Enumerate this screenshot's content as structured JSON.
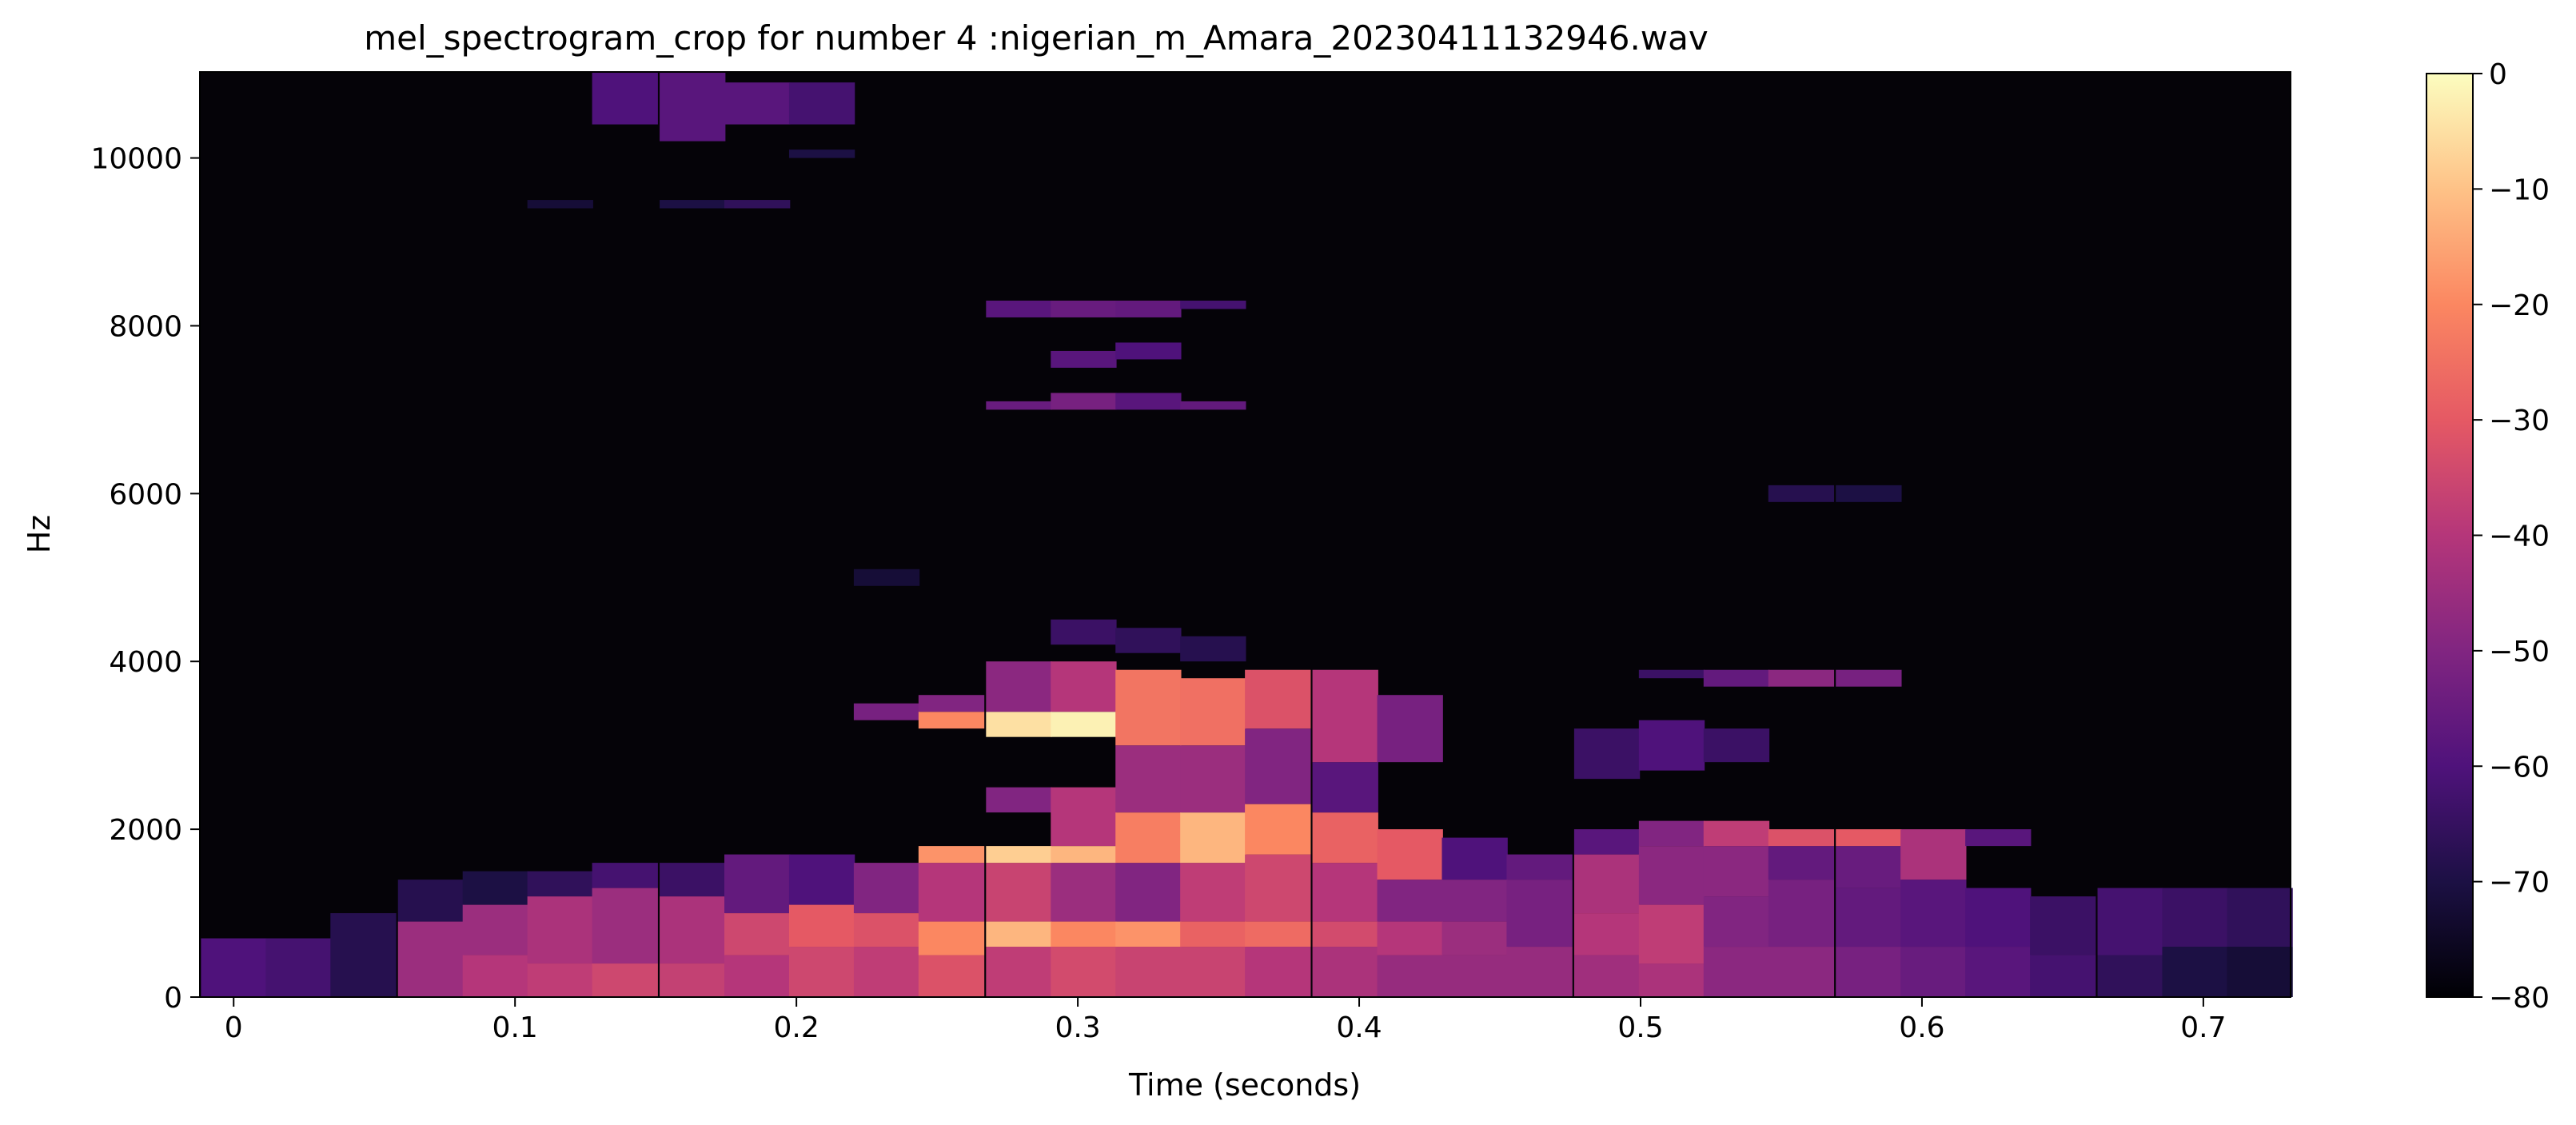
{
  "chart_data": {
    "type": "heatmap",
    "title": "mel_spectrogram_crop for number 4 :nigerian_m_Amara_20230411132946.wav",
    "xlabel": "Time (seconds)",
    "ylabel": "Hz",
    "xlim": [
      -0.012,
      0.731
    ],
    "ylim": [
      0,
      11025
    ],
    "x_ticks": [
      0,
      0.1,
      0.2,
      0.3,
      0.4,
      0.5,
      0.6,
      0.7
    ],
    "x_tick_labels": [
      "0",
      "0.1",
      "0.2",
      "0.3",
      "0.4",
      "0.5",
      "0.6",
      "0.7"
    ],
    "y_ticks": [
      0,
      2000,
      4000,
      6000,
      8000,
      10000
    ],
    "y_tick_labels": [
      "0",
      "2000",
      "4000",
      "6000",
      "8000",
      "10000"
    ],
    "colorbar": {
      "range": [
        -80,
        0
      ],
      "ticks": [
        0,
        -10,
        -20,
        -30,
        -40,
        -50,
        -60,
        -70,
        -80
      ],
      "tick_labels": [
        "0",
        "−10",
        "−20",
        "−30",
        "−40",
        "−50",
        "−60",
        "−70",
        "−80"
      ],
      "colormap": "magma"
    },
    "frames": [
      {
        "t": 0.0,
        "regions": [
          [
            0,
            700,
            -60
          ]
        ]
      },
      {
        "t": 0.023,
        "regions": [
          [
            0,
            700,
            -62
          ]
        ]
      },
      {
        "t": 0.046,
        "regions": [
          [
            0,
            1000,
            -68
          ]
        ]
      },
      {
        "t": 0.07,
        "regions": [
          [
            0,
            900,
            -45
          ],
          [
            900,
            1400,
            -68
          ]
        ]
      },
      {
        "t": 0.093,
        "regions": [
          [
            0,
            500,
            -40
          ],
          [
            500,
            1100,
            -45
          ],
          [
            1100,
            1500,
            -70
          ]
        ]
      },
      {
        "t": 0.116,
        "regions": [
          [
            0,
            400,
            -38
          ],
          [
            400,
            1200,
            -42
          ],
          [
            1200,
            1500,
            -66
          ],
          [
            9400,
            9500,
            -72
          ]
        ]
      },
      {
        "t": 0.139,
        "regions": [
          [
            0,
            400,
            -35
          ],
          [
            400,
            1300,
            -45
          ],
          [
            1300,
            1600,
            -62
          ],
          [
            10400,
            11025,
            -60
          ]
        ]
      },
      {
        "t": 0.163,
        "regions": [
          [
            0,
            400,
            -37
          ],
          [
            400,
            1200,
            -42
          ],
          [
            1200,
            1600,
            -64
          ],
          [
            10200,
            11025,
            -58
          ],
          [
            9400,
            9500,
            -70
          ]
        ]
      },
      {
        "t": 0.186,
        "regions": [
          [
            0,
            500,
            -40
          ],
          [
            500,
            1000,
            -35
          ],
          [
            1000,
            1700,
            -56
          ],
          [
            10400,
            10900,
            -58
          ],
          [
            9400,
            9500,
            -66
          ]
        ]
      },
      {
        "t": 0.209,
        "regions": [
          [
            0,
            600,
            -35
          ],
          [
            600,
            1100,
            -30
          ],
          [
            1100,
            1700,
            -60
          ],
          [
            10400,
            10900,
            -62
          ],
          [
            10000,
            10100,
            -70
          ]
        ]
      },
      {
        "t": 0.232,
        "regions": [
          [
            0,
            600,
            -38
          ],
          [
            600,
            1000,
            -32
          ],
          [
            1000,
            1600,
            -50
          ],
          [
            3300,
            3500,
            -52
          ],
          [
            4900,
            5100,
            -72
          ]
        ]
      },
      {
        "t": 0.255,
        "regions": [
          [
            0,
            500,
            -32
          ],
          [
            500,
            900,
            -20
          ],
          [
            900,
            1600,
            -40
          ],
          [
            1600,
            1800,
            -18
          ],
          [
            3200,
            3400,
            -20
          ],
          [
            3400,
            3600,
            -50
          ]
        ]
      },
      {
        "t": 0.279,
        "regions": [
          [
            0,
            600,
            -38
          ],
          [
            600,
            900,
            -12
          ],
          [
            900,
            1600,
            -36
          ],
          [
            1600,
            1800,
            -8
          ],
          [
            2200,
            2500,
            -50
          ],
          [
            3100,
            3400,
            -5
          ],
          [
            3400,
            4000,
            -48
          ],
          [
            7000,
            7100,
            -55
          ],
          [
            8100,
            8300,
            -58
          ]
        ]
      },
      {
        "t": 0.302,
        "regions": [
          [
            0,
            600,
            -34
          ],
          [
            600,
            900,
            -20
          ],
          [
            900,
            1600,
            -45
          ],
          [
            1600,
            1800,
            -12
          ],
          [
            1800,
            2500,
            -40
          ],
          [
            3100,
            3400,
            -2
          ],
          [
            3400,
            4000,
            -40
          ],
          [
            4200,
            4500,
            -64
          ],
          [
            7000,
            7200,
            -52
          ],
          [
            7500,
            7700,
            -58
          ],
          [
            8100,
            8300,
            -55
          ]
        ]
      },
      {
        "t": 0.325,
        "regions": [
          [
            0,
            600,
            -36
          ],
          [
            600,
            900,
            -18
          ],
          [
            900,
            1600,
            -50
          ],
          [
            1600,
            2200,
            -22
          ],
          [
            2200,
            3000,
            -45
          ],
          [
            3000,
            3900,
            -24
          ],
          [
            4100,
            4400,
            -66
          ],
          [
            7000,
            7200,
            -58
          ],
          [
            7600,
            7800,
            -60
          ],
          [
            8100,
            8300,
            -56
          ]
        ]
      },
      {
        "t": 0.348,
        "regions": [
          [
            0,
            600,
            -36
          ],
          [
            600,
            900,
            -28
          ],
          [
            900,
            1600,
            -38
          ],
          [
            1600,
            2200,
            -12
          ],
          [
            2200,
            3000,
            -45
          ],
          [
            3000,
            3800,
            -25
          ],
          [
            4000,
            4300,
            -68
          ],
          [
            7000,
            7100,
            -56
          ],
          [
            8200,
            8300,
            -62
          ]
        ]
      },
      {
        "t": 0.371,
        "regions": [
          [
            0,
            600,
            -40
          ],
          [
            600,
            900,
            -26
          ],
          [
            900,
            1700,
            -35
          ],
          [
            1700,
            2300,
            -20
          ],
          [
            2300,
            3200,
            -50
          ],
          [
            3200,
            3900,
            -32
          ]
        ]
      },
      {
        "t": 0.395,
        "regions": [
          [
            0,
            600,
            -42
          ],
          [
            600,
            900,
            -34
          ],
          [
            900,
            1600,
            -40
          ],
          [
            1600,
            2200,
            -28
          ],
          [
            2200,
            2800,
            -58
          ],
          [
            2800,
            3900,
            -40
          ]
        ]
      },
      {
        "t": 0.418,
        "regions": [
          [
            0,
            500,
            -46
          ],
          [
            500,
            900,
            -40
          ],
          [
            900,
            1400,
            -50
          ],
          [
            1400,
            2000,
            -30
          ],
          [
            2800,
            3600,
            -52
          ]
        ]
      },
      {
        "t": 0.441,
        "regions": [
          [
            0,
            500,
            -46
          ],
          [
            500,
            900,
            -45
          ],
          [
            900,
            1400,
            -50
          ],
          [
            1400,
            1900,
            -60
          ]
        ]
      },
      {
        "t": 0.464,
        "regions": [
          [
            0,
            600,
            -46
          ],
          [
            600,
            1400,
            -52
          ],
          [
            1400,
            1700,
            -56
          ]
        ]
      },
      {
        "t": 0.488,
        "regions": [
          [
            0,
            500,
            -44
          ],
          [
            500,
            1000,
            -40
          ],
          [
            1000,
            1700,
            -42
          ],
          [
            1700,
            2000,
            -58
          ],
          [
            2600,
            3200,
            -64
          ]
        ]
      },
      {
        "t": 0.511,
        "regions": [
          [
            0,
            400,
            -42
          ],
          [
            400,
            1100,
            -38
          ],
          [
            1100,
            1800,
            -48
          ],
          [
            1800,
            2100,
            -50
          ],
          [
            2700,
            3300,
            -60
          ],
          [
            3800,
            3900,
            -64
          ]
        ]
      },
      {
        "t": 0.534,
        "regions": [
          [
            0,
            600,
            -48
          ],
          [
            600,
            1200,
            -50
          ],
          [
            1200,
            1800,
            -48
          ],
          [
            1800,
            2100,
            -38
          ],
          [
            2800,
            3200,
            -64
          ],
          [
            3700,
            3900,
            -56
          ]
        ]
      },
      {
        "t": 0.557,
        "regions": [
          [
            0,
            600,
            -48
          ],
          [
            600,
            1400,
            -52
          ],
          [
            1400,
            1800,
            -56
          ],
          [
            1800,
            2000,
            -32
          ],
          [
            3700,
            3900,
            -48
          ],
          [
            5900,
            6100,
            -68
          ]
        ]
      },
      {
        "t": 0.581,
        "regions": [
          [
            0,
            600,
            -52
          ],
          [
            600,
            1300,
            -56
          ],
          [
            1300,
            1800,
            -55
          ],
          [
            1800,
            2000,
            -30
          ],
          [
            3700,
            3900,
            -52
          ],
          [
            5900,
            6100,
            -70
          ]
        ]
      },
      {
        "t": 0.604,
        "regions": [
          [
            0,
            600,
            -55
          ],
          [
            600,
            1400,
            -58
          ],
          [
            1400,
            2000,
            -42
          ]
        ]
      },
      {
        "t": 0.627,
        "regions": [
          [
            0,
            600,
            -58
          ],
          [
            600,
            1300,
            -60
          ],
          [
            1800,
            2000,
            -58
          ]
        ]
      },
      {
        "t": 0.65,
        "regions": [
          [
            0,
            500,
            -62
          ],
          [
            500,
            1200,
            -64
          ]
        ]
      },
      {
        "t": 0.674,
        "regions": [
          [
            0,
            500,
            -66
          ],
          [
            500,
            1300,
            -62
          ]
        ]
      },
      {
        "t": 0.697,
        "regions": [
          [
            0,
            600,
            -70
          ],
          [
            600,
            1300,
            -64
          ]
        ]
      },
      {
        "t": 0.72,
        "regions": [
          [
            0,
            600,
            -72
          ],
          [
            600,
            1300,
            -66
          ]
        ]
      }
    ]
  }
}
